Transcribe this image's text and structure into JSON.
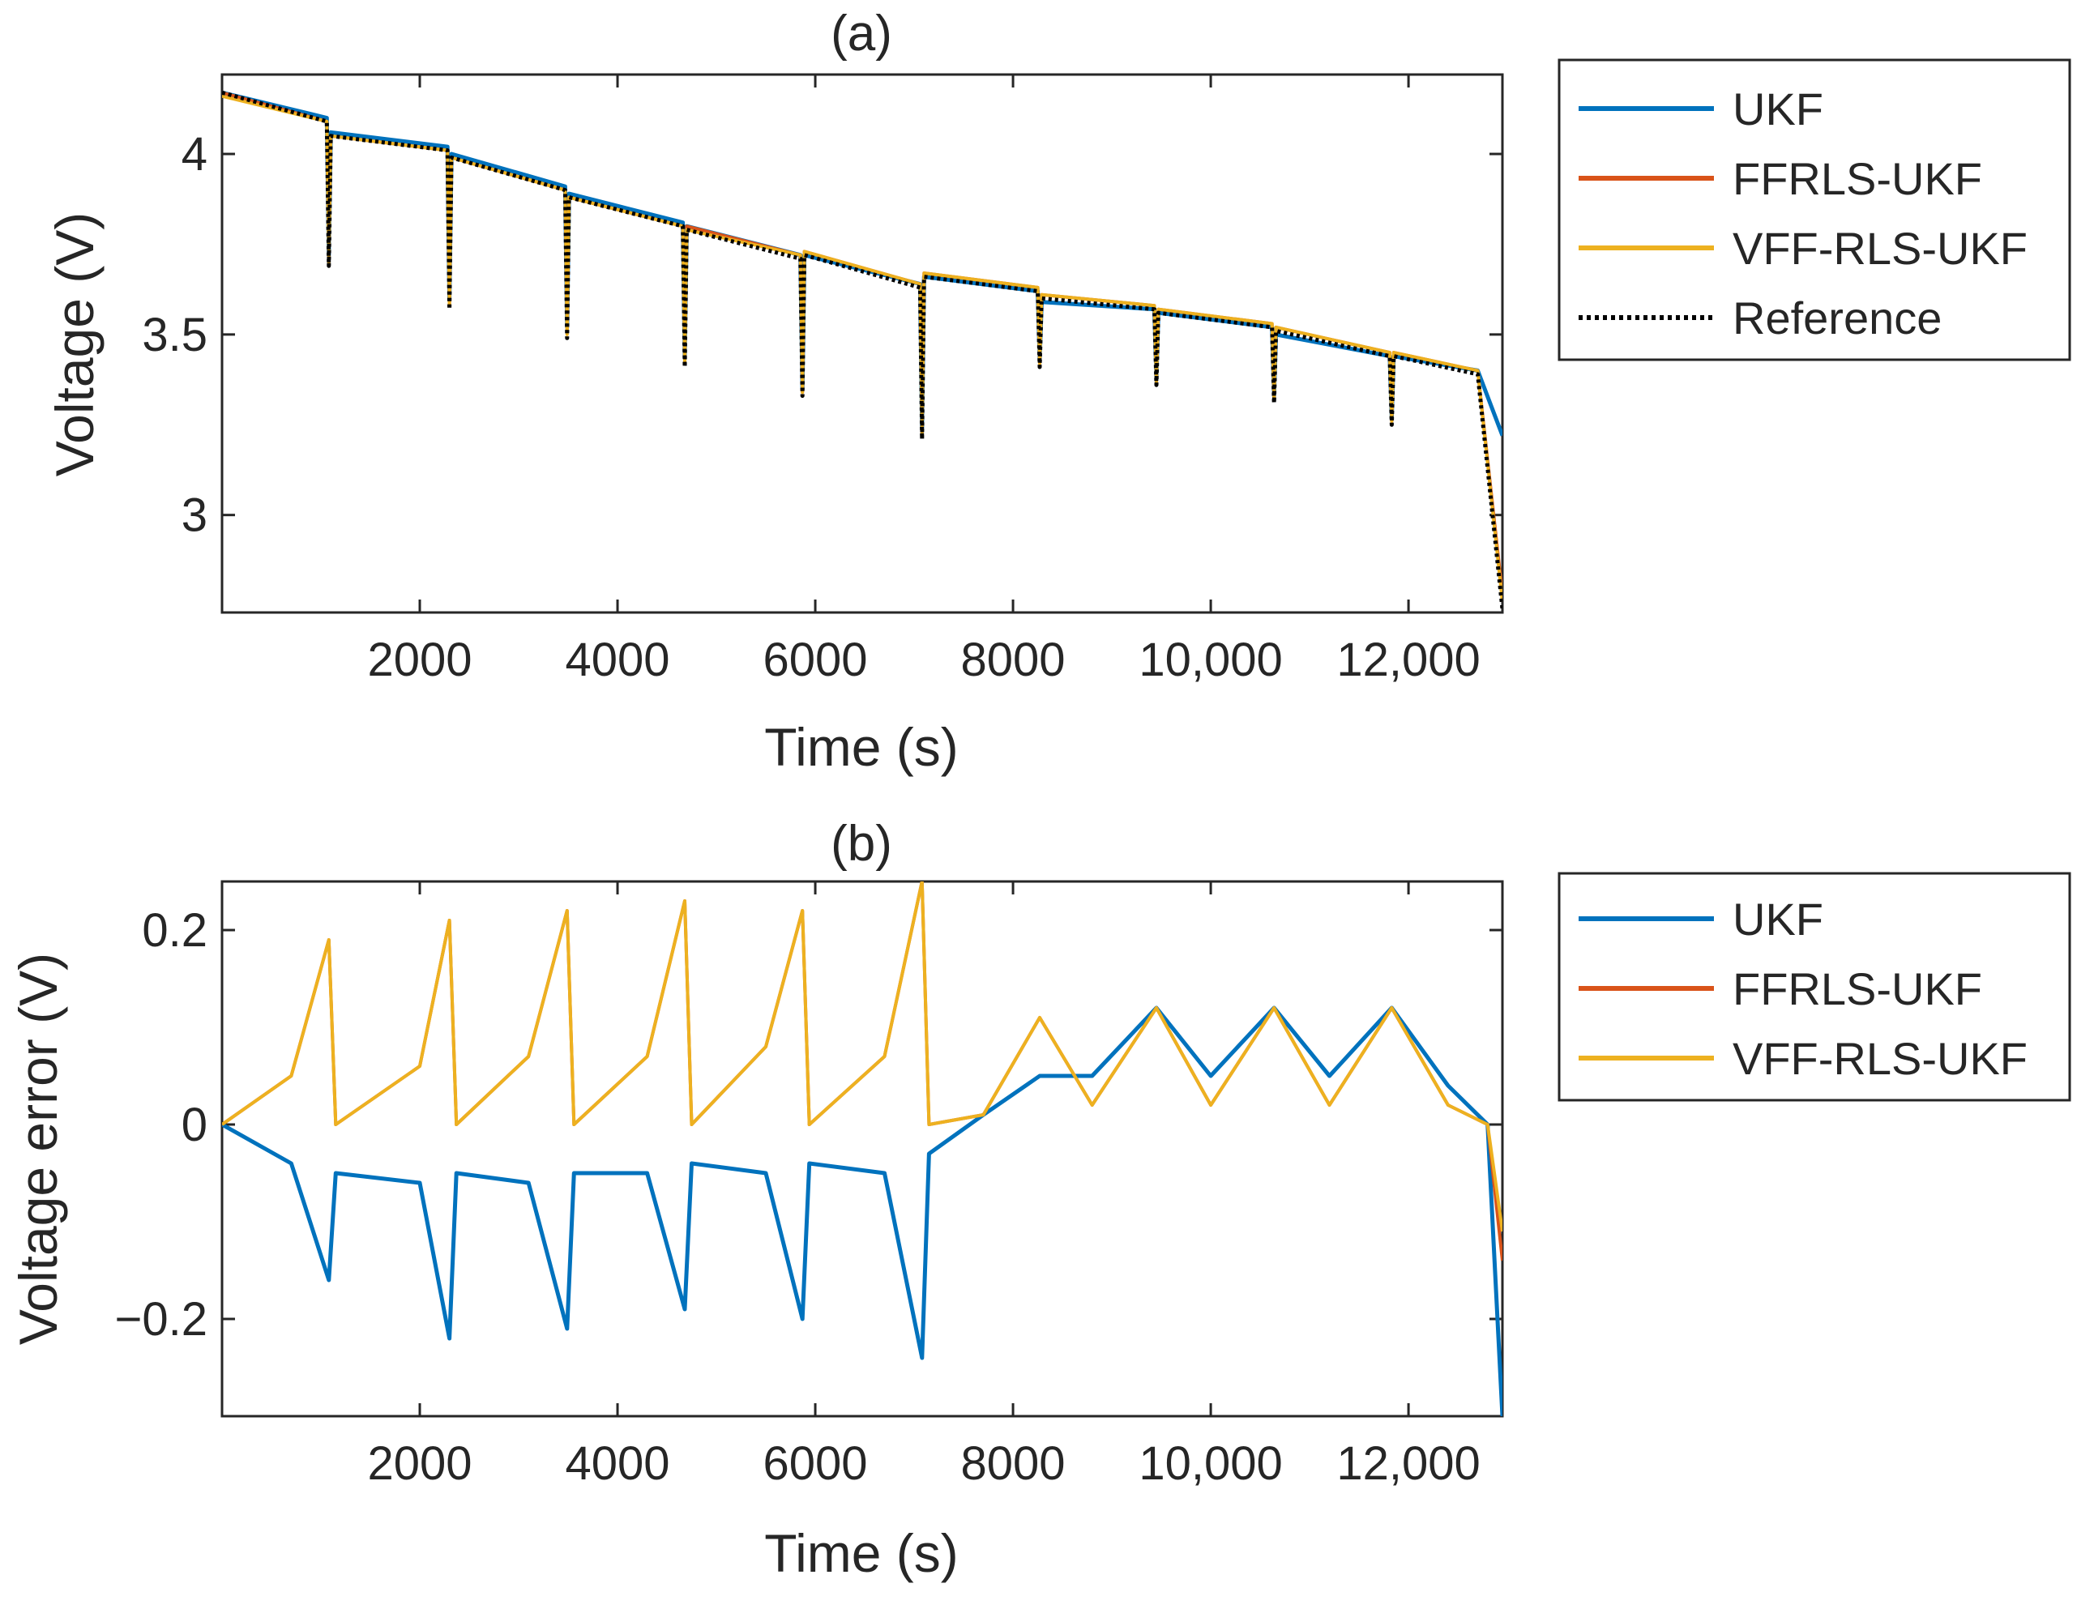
{
  "chart_data": [
    {
      "type": "line",
      "panel_title": "(a)",
      "xlabel": "Time (s)",
      "ylabel": "Voltage (V)",
      "xlim": [
        0,
        12950
      ],
      "ylim": [
        2.73,
        4.22
      ],
      "xticks": [
        2000,
        4000,
        6000,
        8000,
        10000,
        12000
      ],
      "xtick_labels": [
        "2000",
        "4000",
        "6000",
        "8000",
        "10,000",
        "12,000"
      ],
      "yticks": [
        3,
        3.5,
        4
      ],
      "ytick_labels": [
        "3",
        "3.5",
        "4"
      ],
      "legend_position": "outside-right",
      "pulse_times": [
        1080,
        2300,
        3490,
        4680,
        5870,
        7080,
        8270,
        9450,
        10640,
        11830
      ],
      "series": [
        {
          "name": "UKF",
          "color": "#0072BD",
          "style": "solid",
          "x": [
            0,
            1060,
            1080,
            1100,
            2280,
            2300,
            2320,
            3470,
            3490,
            3510,
            4660,
            4680,
            4700,
            5850,
            5870,
            5890,
            7060,
            7080,
            7100,
            8250,
            8270,
            8290,
            9430,
            9450,
            9470,
            10620,
            10640,
            10660,
            11810,
            11830,
            11850,
            12700,
            12950
          ],
          "values": [
            4.17,
            4.1,
            3.72,
            4.06,
            4.02,
            3.6,
            4.0,
            3.91,
            3.52,
            3.89,
            3.81,
            3.44,
            3.8,
            3.72,
            3.35,
            3.72,
            3.64,
            3.24,
            3.66,
            3.62,
            3.43,
            3.59,
            3.57,
            3.38,
            3.56,
            3.52,
            3.33,
            3.5,
            3.44,
            3.27,
            3.44,
            3.4,
            3.22
          ]
        },
        {
          "name": "FFRLS-UKF",
          "color": "#D95319",
          "style": "solid",
          "x": [
            0,
            1060,
            1080,
            1100,
            2280,
            2300,
            2320,
            3470,
            3490,
            3510,
            4660,
            4680,
            4700,
            5850,
            5870,
            5890,
            7060,
            7080,
            7100,
            8250,
            8270,
            8290,
            9430,
            9450,
            9470,
            10620,
            10640,
            10660,
            11810,
            11830,
            11850,
            12700,
            12950
          ],
          "values": [
            4.17,
            4.09,
            3.71,
            4.05,
            4.01,
            3.58,
            3.99,
            3.9,
            3.51,
            3.88,
            3.8,
            3.43,
            3.8,
            3.72,
            3.34,
            3.73,
            3.64,
            3.23,
            3.67,
            3.63,
            3.42,
            3.61,
            3.58,
            3.37,
            3.57,
            3.53,
            3.32,
            3.52,
            3.45,
            3.26,
            3.45,
            3.4,
            2.78
          ]
        },
        {
          "name": "VFF-RLS-UKF",
          "color": "#EDB120",
          "style": "solid",
          "x": [
            0,
            1060,
            1080,
            1100,
            2280,
            2300,
            2320,
            3470,
            3490,
            3510,
            4660,
            4680,
            4700,
            5850,
            5870,
            5890,
            7060,
            7080,
            7100,
            8250,
            8270,
            8290,
            9430,
            9450,
            9470,
            10620,
            10640,
            10660,
            11810,
            11830,
            11850,
            12700,
            12950
          ],
          "values": [
            4.16,
            4.09,
            3.7,
            4.05,
            4.01,
            3.58,
            3.99,
            3.9,
            3.5,
            3.88,
            3.8,
            3.42,
            3.79,
            3.72,
            3.34,
            3.73,
            3.64,
            3.22,
            3.67,
            3.63,
            3.42,
            3.61,
            3.58,
            3.37,
            3.57,
            3.53,
            3.32,
            3.52,
            3.45,
            3.26,
            3.45,
            3.4,
            2.76
          ]
        },
        {
          "name": "Reference",
          "color": "#000000",
          "style": "dotted",
          "x": [
            0,
            1060,
            1080,
            1100,
            2280,
            2300,
            2320,
            3470,
            3490,
            3510,
            4660,
            4680,
            4700,
            5850,
            5870,
            5890,
            7060,
            7080,
            7100,
            8250,
            8270,
            8290,
            9430,
            9450,
            9470,
            10620,
            10640,
            10660,
            11810,
            11830,
            11850,
            12700,
            12950
          ],
          "values": [
            4.17,
            4.09,
            3.69,
            4.05,
            4.01,
            3.57,
            3.99,
            3.9,
            3.49,
            3.88,
            3.8,
            3.41,
            3.79,
            3.71,
            3.33,
            3.72,
            3.63,
            3.21,
            3.66,
            3.62,
            3.41,
            3.6,
            3.57,
            3.36,
            3.56,
            3.52,
            3.31,
            3.51,
            3.44,
            3.25,
            3.44,
            3.39,
            2.74
          ]
        }
      ]
    },
    {
      "type": "line",
      "panel_title": "(b)",
      "xlabel": "Time (s)",
      "ylabel": "Voltage error (V)",
      "xlim": [
        0,
        12950
      ],
      "ylim": [
        -0.3,
        0.25
      ],
      "xticks": [
        2000,
        4000,
        6000,
        8000,
        10000,
        12000
      ],
      "xtick_labels": [
        "2000",
        "4000",
        "6000",
        "8000",
        "10,000",
        "12,000"
      ],
      "yticks": [
        -0.2,
        0,
        0.2
      ],
      "ytick_labels": [
        "−0.2",
        "0",
        "0.2"
      ],
      "legend_position": "outside-right",
      "series": [
        {
          "name": "UKF",
          "color": "#0072BD",
          "x": [
            0,
            700,
            1080,
            1150,
            2000,
            2300,
            2370,
            3100,
            3490,
            3560,
            4300,
            4680,
            4750,
            5500,
            5870,
            5940,
            6700,
            7080,
            7150,
            7700,
            8270,
            8800,
            9450,
            10000,
            10640,
            11200,
            11830,
            12400,
            12800,
            12950
          ],
          "values": [
            0.0,
            -0.04,
            -0.16,
            -0.05,
            -0.06,
            -0.22,
            -0.05,
            -0.06,
            -0.21,
            -0.05,
            -0.05,
            -0.19,
            -0.04,
            -0.05,
            -0.2,
            -0.04,
            -0.05,
            -0.24,
            -0.03,
            0.01,
            0.05,
            0.05,
            0.12,
            0.05,
            0.12,
            0.05,
            0.12,
            0.04,
            0.0,
            -0.3
          ]
        },
        {
          "name": "FFRLS-UKF",
          "color": "#D95319",
          "x": [
            0,
            700,
            1080,
            1150,
            2000,
            2300,
            2370,
            3100,
            3490,
            3560,
            4300,
            4680,
            4750,
            5500,
            5870,
            5940,
            6700,
            7080,
            7150,
            7700,
            8270,
            8800,
            9450,
            10000,
            10640,
            11200,
            11830,
            12400,
            12800,
            12950
          ],
          "values": [
            0.0,
            0.05,
            0.19,
            0.0,
            0.06,
            0.21,
            0.0,
            0.07,
            0.22,
            0.0,
            0.07,
            0.23,
            0.0,
            0.08,
            0.22,
            0.0,
            0.07,
            0.25,
            0.0,
            0.01,
            0.11,
            0.02,
            0.12,
            0.02,
            0.12,
            0.02,
            0.12,
            0.02,
            0.0,
            -0.14
          ]
        },
        {
          "name": "VFF-RLS-UKF",
          "color": "#EDB120",
          "x": [
            0,
            700,
            1080,
            1150,
            2000,
            2300,
            2370,
            3100,
            3490,
            3560,
            4300,
            4680,
            4750,
            5500,
            5870,
            5940,
            6700,
            7080,
            7150,
            7700,
            8270,
            8800,
            9450,
            10000,
            10640,
            11200,
            11830,
            12400,
            12800,
            12950
          ],
          "values": [
            0.0,
            0.05,
            0.19,
            0.0,
            0.06,
            0.21,
            0.0,
            0.07,
            0.22,
            0.0,
            0.07,
            0.23,
            0.0,
            0.08,
            0.22,
            0.0,
            0.07,
            0.25,
            0.0,
            0.01,
            0.11,
            0.02,
            0.12,
            0.02,
            0.12,
            0.02,
            0.12,
            0.02,
            0.0,
            -0.11
          ]
        }
      ]
    }
  ]
}
